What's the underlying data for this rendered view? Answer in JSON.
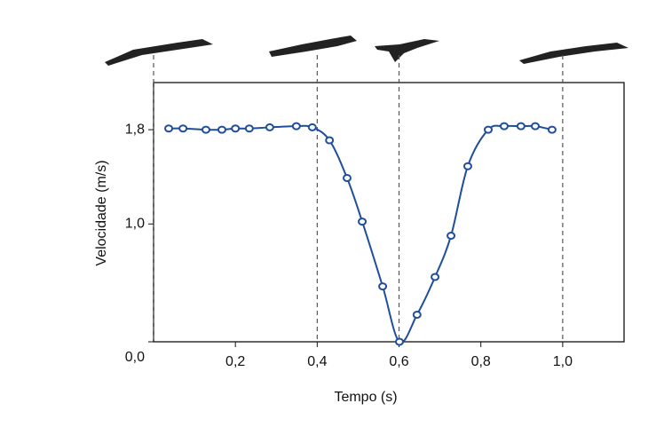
{
  "chart_data": {
    "type": "line",
    "x_label": "Tempo (s)",
    "y_label": "Velocidade (m/s)",
    "x": [
      0.037,
      0.072,
      0.128,
      0.167,
      0.2,
      0.234,
      0.284,
      0.349,
      0.388,
      0.43,
      0.473,
      0.51,
      0.56,
      0.601,
      0.644,
      0.688,
      0.727,
      0.768,
      0.818,
      0.857,
      0.898,
      0.933,
      0.974
    ],
    "series": [
      {
        "color": "#1f4e9c",
        "values": [
          1.81,
          1.81,
          1.8,
          1.8,
          1.81,
          1.81,
          1.82,
          1.83,
          1.82,
          1.71,
          1.39,
          1.02,
          0.47,
          0,
          0.23,
          0.55,
          0.9,
          1.49,
          1.8,
          1.83,
          1.83,
          1.83,
          1.8
        ]
      }
    ],
    "xlim": [
      0,
      1.15
    ],
    "ylim": [
      0,
      2.2
    ],
    "xticks": [
      {
        "value": 0.2,
        "label": "0,2"
      },
      {
        "value": 0.4,
        "label": "0,4"
      },
      {
        "value": 0.6,
        "label": "0,6"
      },
      {
        "value": 0.8,
        "label": "0,8"
      },
      {
        "value": 1.0,
        "label": "1,0"
      }
    ],
    "yticks": [
      {
        "value": 0,
        "label": "0,0"
      },
      {
        "value": 1.0,
        "label": "1,0"
      },
      {
        "value": 1.8,
        "label": "1,8"
      }
    ],
    "phase_lines": [
      0,
      0.4,
      0.6,
      1.0
    ]
  }
}
